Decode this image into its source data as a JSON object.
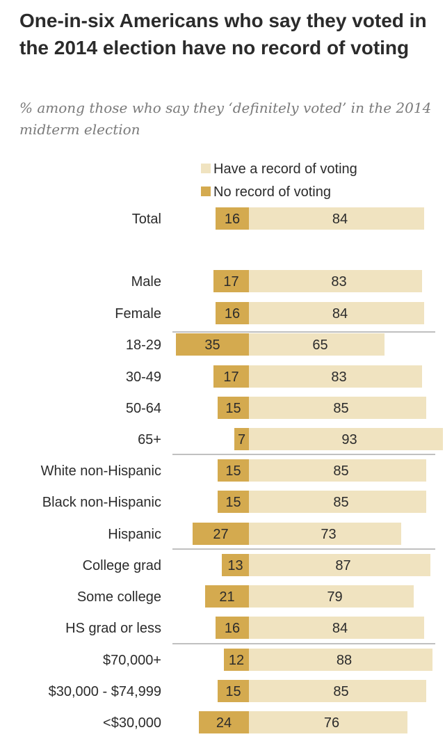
{
  "chart_data": {
    "type": "bar",
    "stacked": true,
    "orientation": "horizontal",
    "title": "One-in-six Americans who say they voted in the 2014 election have no record of voting",
    "subtitle": "% among those who say they ‘definitely voted’ in the 2014 midterm election",
    "legend": [
      {
        "name": "Have a record of voting",
        "color": "#f0e3c0"
      },
      {
        "name": "No record of voting",
        "color": "#d4aa4f"
      }
    ],
    "groups": [
      {
        "rows": [
          {
            "label": "Total",
            "no_record": 16,
            "have_record": 84
          }
        ]
      },
      {
        "rows": [
          {
            "label": "Male",
            "no_record": 17,
            "have_record": 83
          },
          {
            "label": "Female",
            "no_record": 16,
            "have_record": 84
          }
        ]
      },
      {
        "rows": [
          {
            "label": "18-29",
            "no_record": 35,
            "have_record": 65
          },
          {
            "label": "30-49",
            "no_record": 17,
            "have_record": 83
          },
          {
            "label": "50-64",
            "no_record": 15,
            "have_record": 85
          },
          {
            "label": "65+",
            "no_record": 7,
            "have_record": 93
          }
        ]
      },
      {
        "rows": [
          {
            "label": "White non-Hispanic",
            "no_record": 15,
            "have_record": 85
          },
          {
            "label": "Black non-Hispanic",
            "no_record": 15,
            "have_record": 85
          },
          {
            "label": "Hispanic",
            "no_record": 27,
            "have_record": 73
          }
        ]
      },
      {
        "rows": [
          {
            "label": "College grad",
            "no_record": 13,
            "have_record": 87
          },
          {
            "label": "Some college",
            "no_record": 21,
            "have_record": 79
          },
          {
            "label": "HS grad or less",
            "no_record": 16,
            "have_record": 84
          }
        ]
      },
      {
        "rows": [
          {
            "label": "$70,000+",
            "no_record": 12,
            "have_record": 88
          },
          {
            "label": "$30,000 - $74,999",
            "no_record": 15,
            "have_record": 85
          },
          {
            "label": "<$30,000",
            "no_record": 24,
            "have_record": 76
          }
        ]
      }
    ]
  }
}
